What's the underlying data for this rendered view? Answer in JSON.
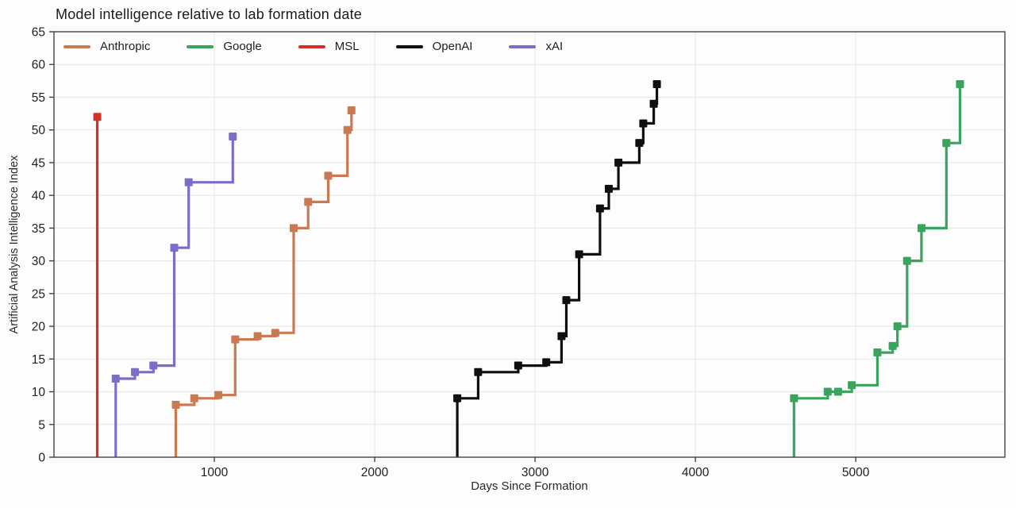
{
  "chart_data": {
    "type": "line",
    "step_style": "post",
    "rises_from_zero": true,
    "title": "Model intelligence relative to lab formation date",
    "xlabel": "Days Since Formation",
    "ylabel": "Artificial Analysis Intelligence Index",
    "xlim": [
      0,
      5930
    ],
    "ylim": [
      0,
      65
    ],
    "xticks": [
      1000,
      2000,
      3000,
      4000,
      5000
    ],
    "yticks": [
      0,
      5,
      10,
      15,
      20,
      25,
      30,
      35,
      40,
      45,
      50,
      55,
      60,
      65
    ],
    "grid": true,
    "legend_position": "top-left-row",
    "series": [
      {
        "name": "Anthropic",
        "color": "#c97a52",
        "points": [
          [
            760,
            8
          ],
          [
            875,
            9
          ],
          [
            1025,
            9.5
          ],
          [
            1130,
            18
          ],
          [
            1270,
            18.5
          ],
          [
            1380,
            19
          ],
          [
            1495,
            35
          ],
          [
            1585,
            39
          ],
          [
            1710,
            43
          ],
          [
            1830,
            50
          ],
          [
            1855,
            53
          ]
        ]
      },
      {
        "name": "Google",
        "color": "#3aa45e",
        "points": [
          [
            4615,
            9
          ],
          [
            4825,
            10
          ],
          [
            4890,
            10
          ],
          [
            4975,
            11
          ],
          [
            5135,
            16
          ],
          [
            5230,
            17
          ],
          [
            5260,
            20
          ],
          [
            5320,
            30
          ],
          [
            5410,
            35
          ],
          [
            5565,
            48
          ],
          [
            5650,
            57
          ]
        ]
      },
      {
        "name": "MSL",
        "color": "#d3302a",
        "points": [
          [
            270,
            52
          ]
        ]
      },
      {
        "name": "OpenAI",
        "color": "#0f0f0f",
        "points": [
          [
            2515,
            9
          ],
          [
            2645,
            13
          ],
          [
            2895,
            14
          ],
          [
            3070,
            14.5
          ],
          [
            3165,
            18.5
          ],
          [
            3195,
            24
          ],
          [
            3275,
            31
          ],
          [
            3405,
            38
          ],
          [
            3460,
            41
          ],
          [
            3520,
            45
          ],
          [
            3650,
            48
          ],
          [
            3675,
            51
          ],
          [
            3740,
            54
          ],
          [
            3760,
            57
          ]
        ]
      },
      {
        "name": "xAI",
        "color": "#7c6ec8",
        "points": [
          [
            385,
            12
          ],
          [
            505,
            13
          ],
          [
            620,
            14
          ],
          [
            750,
            32
          ],
          [
            840,
            42
          ],
          [
            1115,
            49
          ]
        ]
      }
    ]
  },
  "style_colors": {
    "grid": "#e8e8e8",
    "spine": "#424242",
    "tick_text": "#212121"
  }
}
